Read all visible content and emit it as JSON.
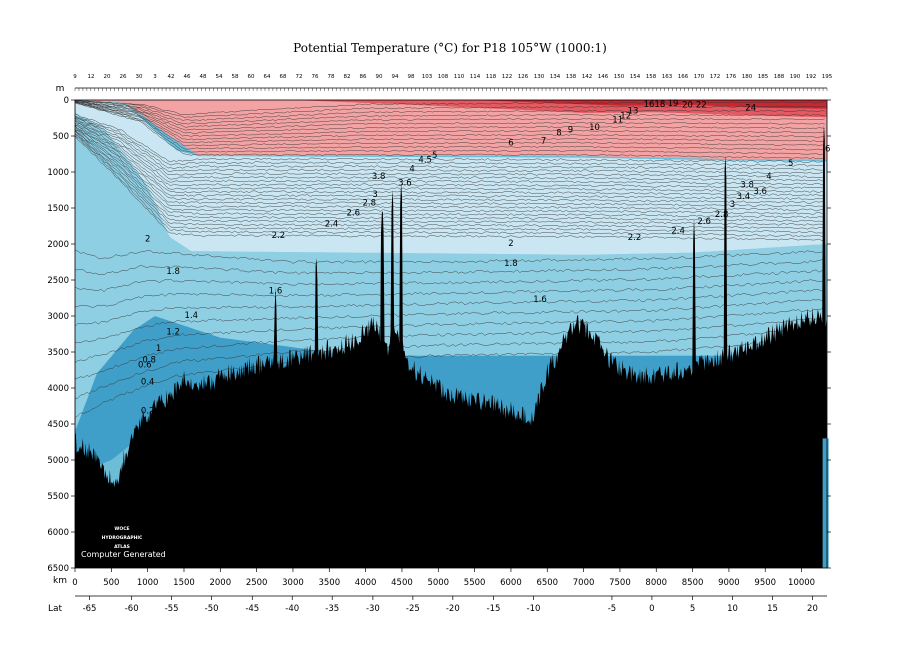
{
  "chart_data": {
    "type": "contour-section",
    "title": "Potential Temperature (°C) for P18 105°W (1000:1)",
    "depth_axis": {
      "label": "m",
      "range": [
        0,
        6500
      ],
      "ticks": [
        "0",
        "500",
        "1000",
        "1500",
        "2000",
        "2500",
        "3000",
        "3500",
        "4000",
        "4500",
        "5000",
        "5500",
        "6000",
        "6500"
      ]
    },
    "distance_axis": {
      "label": "km",
      "range": [
        0,
        10350
      ],
      "ticks": [
        "0",
        "500",
        "1000",
        "1500",
        "2000",
        "2500",
        "3000",
        "3500",
        "4000",
        "4500",
        "5000",
        "5500",
        "6000",
        "6500",
        "7000",
        "7500",
        "8000",
        "8500",
        "9000",
        "9500",
        "10000"
      ]
    },
    "latitude_axis": {
      "label": "Lat",
      "ticks": [
        {
          "value": "-65",
          "km": 200
        },
        {
          "value": "-60",
          "km": 780
        },
        {
          "value": "-55",
          "km": 1330
        },
        {
          "value": "-50",
          "km": 1880
        },
        {
          "value": "-45",
          "km": 2440
        },
        {
          "value": "-40",
          "km": 2990
        },
        {
          "value": "-35",
          "km": 3540
        },
        {
          "value": "-30",
          "km": 4100
        },
        {
          "value": "-25",
          "km": 4650
        },
        {
          "value": "-20",
          "km": 5200
        },
        {
          "value": "-15",
          "km": 5760
        },
        {
          "value": "-10",
          "km": 6310
        },
        {
          "value": "-5",
          "km": 7390
        },
        {
          "value": "0",
          "km": 7940
        },
        {
          "value": "5",
          "km": 8500
        },
        {
          "value": "10",
          "km": 9050
        },
        {
          "value": "15",
          "km": 9600
        },
        {
          "value": "20",
          "km": 10150
        }
      ]
    },
    "stations": [
      "9",
      "12",
      "20",
      "26",
      "30",
      "3",
      "42",
      "46",
      "48",
      "54",
      "58",
      "60",
      "64",
      "68",
      "72",
      "76",
      "78",
      "82",
      "86",
      "90",
      "94",
      "98",
      "103",
      "108",
      "110",
      "114",
      "118",
      "122",
      "126",
      "130",
      "134",
      "138",
      "142",
      "146",
      "150",
      "154",
      "158",
      "163",
      "166",
      "170",
      "172",
      "176",
      "180",
      "185",
      "188",
      "190",
      "192",
      "195"
    ],
    "contour_labels": [
      {
        "text": "2",
        "km": 1000,
        "depth": 1930
      },
      {
        "text": "1.8",
        "km": 1350,
        "depth": 2380
      },
      {
        "text": "1.6",
        "km": 2760,
        "depth": 2650
      },
      {
        "text": "1.4",
        "km": 1600,
        "depth": 2990
      },
      {
        "text": "1.2",
        "km": 1350,
        "depth": 3220
      },
      {
        "text": "1",
        "km": 1150,
        "depth": 3450
      },
      {
        "text": "0.8",
        "km": 1020,
        "depth": 3610
      },
      {
        "text": "0.6",
        "km": 960,
        "depth": 3680
      },
      {
        "text": "0.4",
        "km": 1000,
        "depth": 3920
      },
      {
        "text": "0.2",
        "km": 1000,
        "depth": 4320
      },
      {
        "text": "2.2",
        "km": 2800,
        "depth": 1880
      },
      {
        "text": "2.4",
        "km": 3530,
        "depth": 1720
      },
      {
        "text": "2.6",
        "km": 3830,
        "depth": 1570
      },
      {
        "text": "2.8",
        "km": 4050,
        "depth": 1430
      },
      {
        "text": "3",
        "km": 4130,
        "depth": 1310
      },
      {
        "text": "3.8",
        "km": 4180,
        "depth": 1060
      },
      {
        "text": "3.6",
        "km": 4540,
        "depth": 1150
      },
      {
        "text": "4",
        "km": 4640,
        "depth": 960
      },
      {
        "text": "4.5",
        "km": 4820,
        "depth": 830
      },
      {
        "text": "5",
        "km": 4950,
        "depth": 770
      },
      {
        "text": "6",
        "km": 6000,
        "depth": 600
      },
      {
        "text": "7",
        "km": 6450,
        "depth": 570
      },
      {
        "text": "8",
        "km": 6660,
        "depth": 460
      },
      {
        "text": "9",
        "km": 6820,
        "depth": 420
      },
      {
        "text": "10",
        "km": 7150,
        "depth": 380
      },
      {
        "text": "11",
        "km": 7470,
        "depth": 280
      },
      {
        "text": "12",
        "km": 7580,
        "depth": 220
      },
      {
        "text": "13",
        "km": 7680,
        "depth": 150
      },
      {
        "text": "16",
        "km": 7900,
        "depth": 60
      },
      {
        "text": "18",
        "km": 8050,
        "depth": 60
      },
      {
        "text": "19",
        "km": 8230,
        "depth": 50
      },
      {
        "text": "20",
        "km": 8430,
        "depth": 70
      },
      {
        "text": "22",
        "km": 8620,
        "depth": 70
      },
      {
        "text": "24",
        "km": 9300,
        "depth": 110
      },
      {
        "text": "2",
        "km": 6000,
        "depth": 1990
      },
      {
        "text": "1.8",
        "km": 6000,
        "depth": 2270
      },
      {
        "text": "1.6",
        "km": 6400,
        "depth": 2770
      },
      {
        "text": "2.2",
        "km": 7700,
        "depth": 1910
      },
      {
        "text": "2.4",
        "km": 8300,
        "depth": 1820
      },
      {
        "text": "2.6",
        "km": 8660,
        "depth": 1690
      },
      {
        "text": "2.8",
        "km": 8900,
        "depth": 1590
      },
      {
        "text": "3",
        "km": 9050,
        "depth": 1450
      },
      {
        "text": "3.4",
        "km": 9200,
        "depth": 1340
      },
      {
        "text": "3.6",
        "km": 9430,
        "depth": 1270
      },
      {
        "text": "3.8",
        "km": 9250,
        "depth": 1180
      },
      {
        "text": "4",
        "km": 9550,
        "depth": 1060
      },
      {
        "text": "5",
        "km": 9850,
        "depth": 880
      },
      {
        "text": "6",
        "km": 10360,
        "depth": 680
      }
    ],
    "colors": {
      "red_dark": "#c62730",
      "red_mid": "#e35a62",
      "red_light": "#f3a3a3",
      "blue_light": "#c9e6f2",
      "blue_mid": "#8fcfe3",
      "blue_deep": "#6dbcd8",
      "blue_deeper": "#3f9fc8",
      "seafloor": "#000000"
    },
    "watermark": [
      "WOCE",
      "HYDROGRAPHIC",
      "ATLAS"
    ],
    "watermark_note": "Computer Generated"
  }
}
